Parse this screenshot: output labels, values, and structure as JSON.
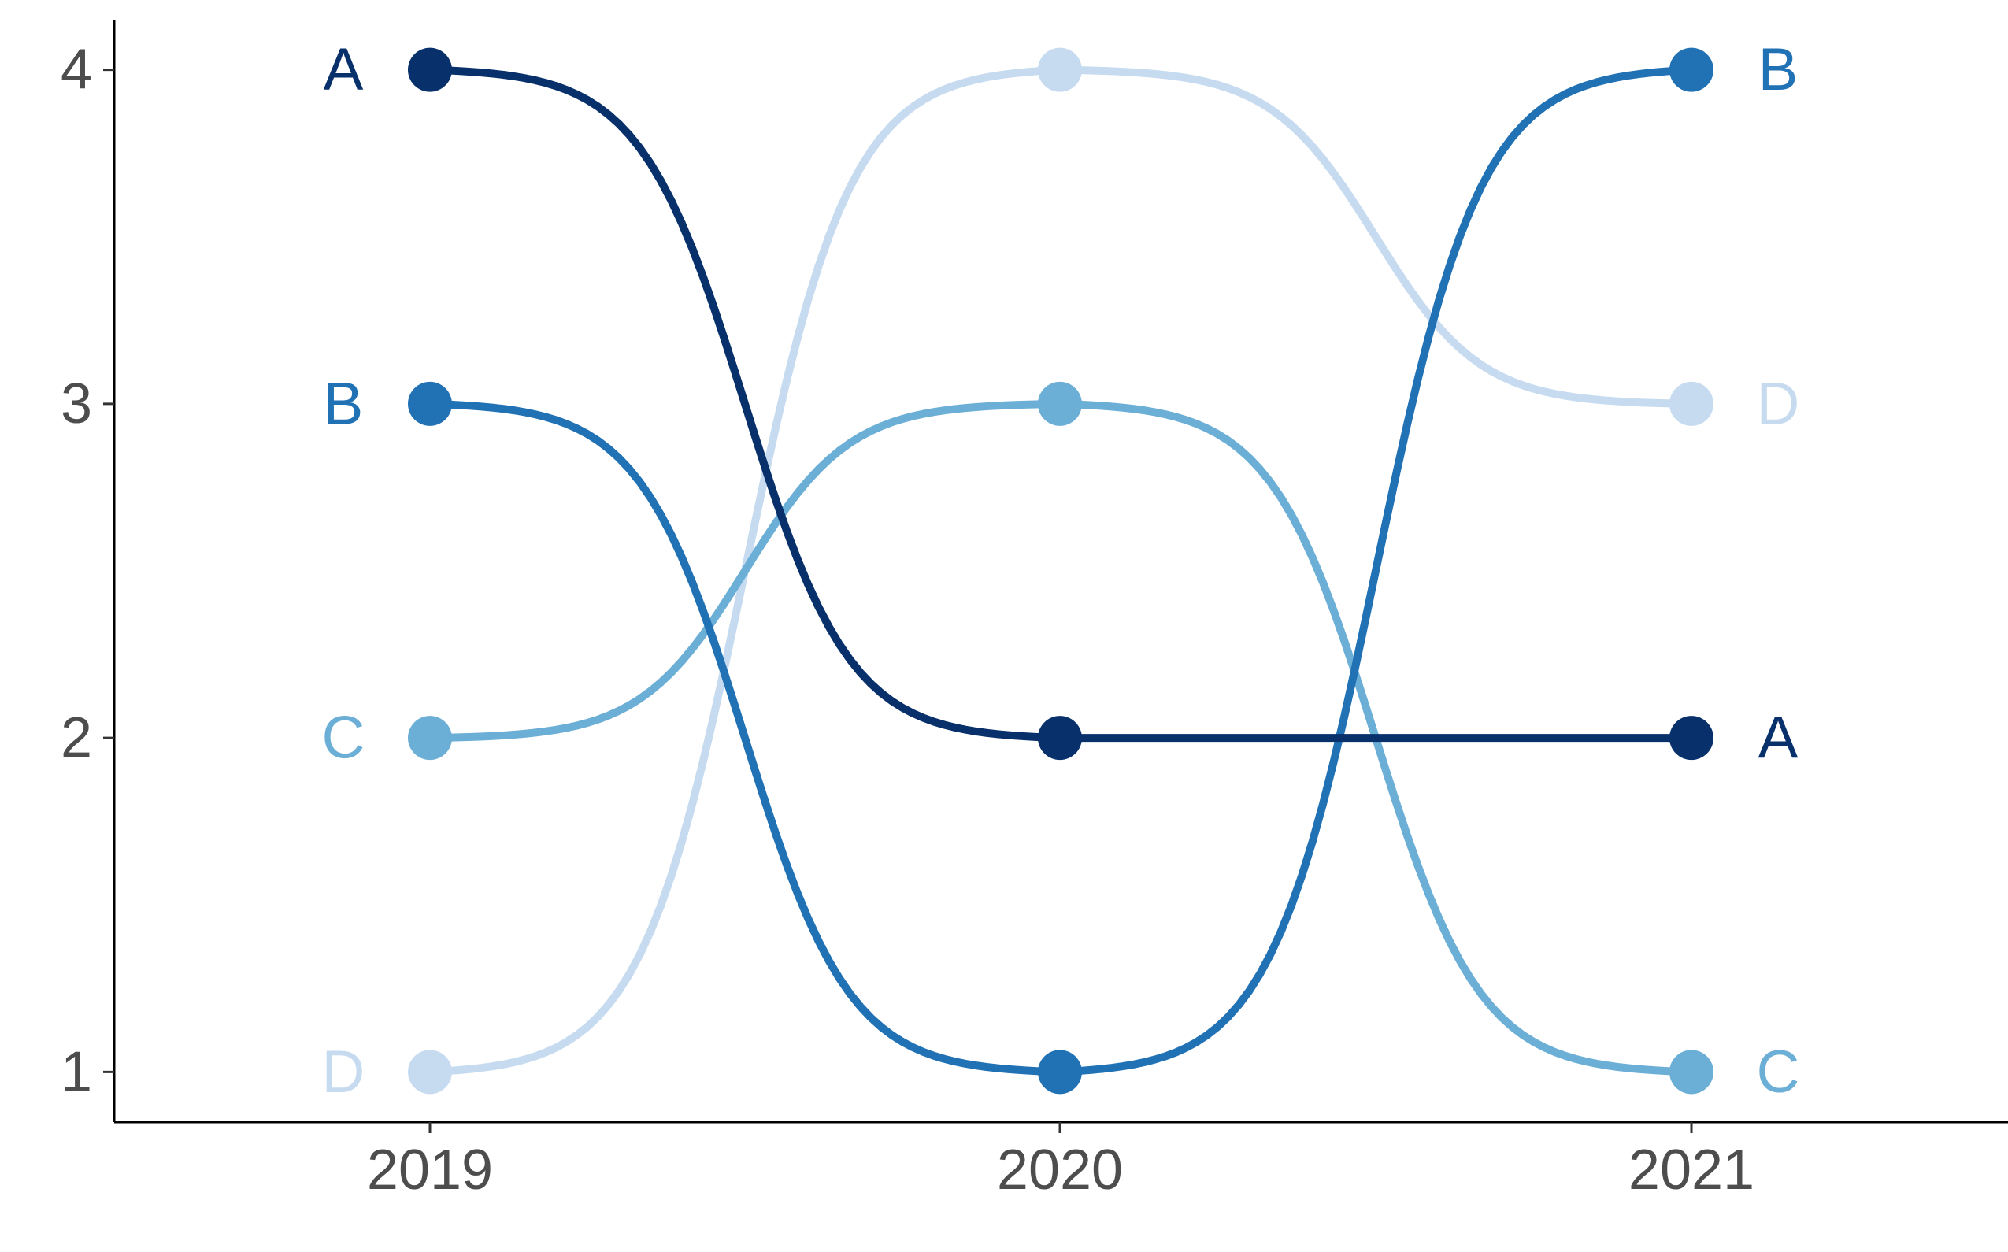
{
  "chart_data": {
    "type": "line",
    "style": "bump",
    "title": "",
    "xlabel": "",
    "ylabel": "",
    "x": [
      "2019",
      "2020",
      "2021"
    ],
    "ylim": [
      0.85,
      4.15
    ],
    "y_ticks": [
      1,
      2,
      3,
      4
    ],
    "grid": false,
    "legend": "none",
    "series": [
      {
        "name": "A",
        "values": [
          4,
          2,
          2
        ],
        "color": "#08306b"
      },
      {
        "name": "B",
        "values": [
          3,
          1,
          4
        ],
        "color": "#2171b5"
      },
      {
        "name": "C",
        "values": [
          2,
          3,
          1
        ],
        "color": "#6baed6"
      },
      {
        "name": "D",
        "values": [
          1,
          4,
          3
        ],
        "color": "#c6dbef"
      }
    ]
  }
}
